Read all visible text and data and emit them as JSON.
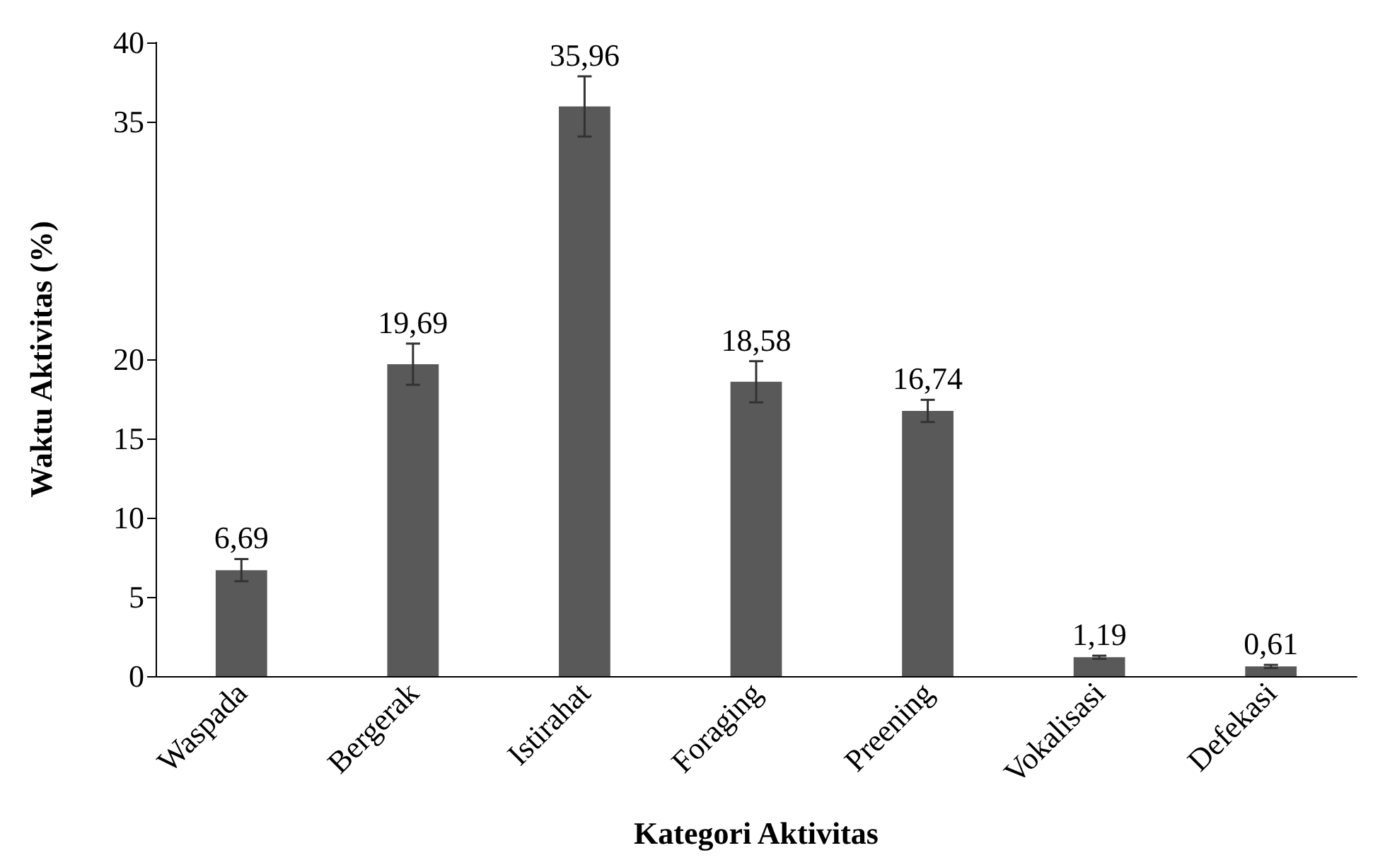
{
  "chart_data": {
    "type": "bar",
    "xlabel": "Kategori Aktivitas",
    "ylabel": "Waktu Aktivitas (%)",
    "categories": [
      "Waspada",
      "Bergerak",
      "Istirahat",
      "Foraging",
      "Preening",
      "Vokalisasi",
      "Defekasi"
    ],
    "values": [
      6.69,
      19.69,
      35.96,
      18.58,
      16.74,
      1.19,
      0.61
    ],
    "value_labels": [
      "6,69",
      "19,69",
      "35,96",
      "18,58",
      "16,74",
      "1,19",
      "0,61"
    ],
    "errors": [
      0.7,
      1.3,
      1.9,
      1.3,
      0.7,
      0.1,
      0.1
    ],
    "color": "#595959",
    "ylim": [
      0,
      40
    ],
    "yticks": [
      0,
      5,
      10,
      15,
      20,
      35,
      40
    ]
  }
}
